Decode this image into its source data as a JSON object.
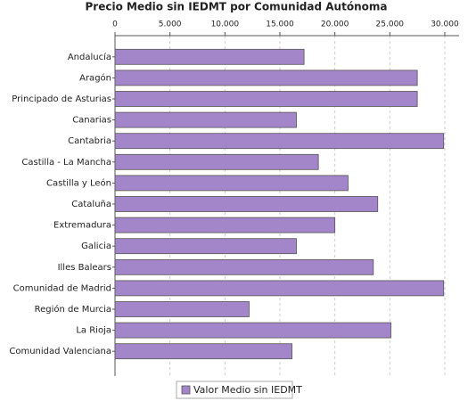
{
  "chart_data": {
    "type": "bar",
    "orientation": "horizontal",
    "title": "Precio Medio sin IEDMT por Comunidad Autónoma",
    "categories": [
      "Andalucía",
      "Aragón",
      "Principado de Asturias",
      "Canarias",
      "Cantabria",
      "Castilla - La Mancha",
      "Castilla y León",
      "Cataluña",
      "Extremadura",
      "Galicia",
      "Illes Balears",
      "Comunidad de Madrid",
      "Región de Murcia",
      "La Rioja",
      "Comunidad Valenciana"
    ],
    "series": [
      {
        "name": "Valor Medio sin IEDMT",
        "color": "#a385c9",
        "values": [
          17200,
          27500,
          27500,
          16500,
          29900,
          18500,
          21200,
          23900,
          20000,
          16500,
          23500,
          29900,
          12200,
          25100,
          16100
        ]
      }
    ],
    "xlim": [
      0,
      31300
    ],
    "xticks": [
      {
        "value": 0,
        "label": "0"
      },
      {
        "value": 5000,
        "label": "5.000"
      },
      {
        "value": 10000,
        "label": "10.000"
      },
      {
        "value": 15000,
        "label": "15.000"
      },
      {
        "value": 20000,
        "label": "20.000"
      },
      {
        "value": 25000,
        "label": "25.000"
      },
      {
        "value": 30000,
        "label": "30.000"
      }
    ],
    "grid": true,
    "legend": "bottom"
  }
}
